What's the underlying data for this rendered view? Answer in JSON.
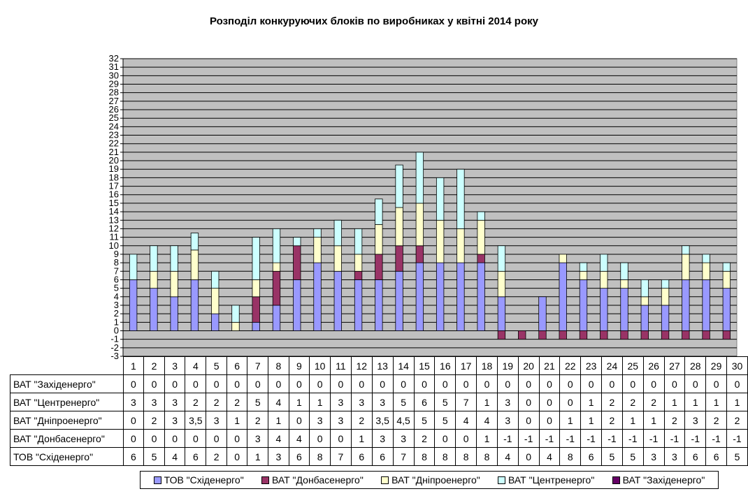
{
  "chart_data": {
    "type": "bar",
    "stacked": true,
    "title": "Розподіл конкуруючих блоків по виробниках у квітні 2014 року",
    "xlabel": "",
    "ylabel": "",
    "ylim": [
      -3,
      32
    ],
    "grid": true,
    "legend": "bottom",
    "categories": [
      "1",
      "2",
      "3",
      "4",
      "5",
      "6",
      "7",
      "8",
      "9",
      "10",
      "11",
      "12",
      "13",
      "14",
      "15",
      "16",
      "17",
      "18",
      "19",
      "20",
      "21",
      "22",
      "23",
      "24",
      "25",
      "26",
      "27",
      "28",
      "29",
      "30"
    ],
    "series": [
      {
        "name": "ТОВ \"Східенерго\"",
        "color": "#9999FF",
        "values": [
          6,
          5,
          4,
          6,
          2,
          0,
          1,
          3,
          6,
          8,
          7,
          6,
          6,
          7,
          8,
          8,
          8,
          8,
          4,
          0,
          4,
          8,
          6,
          5,
          5,
          3,
          3,
          6,
          6,
          5
        ],
        "labels": [
          "6",
          "5",
          "4",
          "6",
          "2",
          "0",
          "1",
          "3",
          "6",
          "8",
          "7",
          "6",
          "6",
          "7",
          "8",
          "8",
          "8",
          "8",
          "4",
          "0",
          "4",
          "8",
          "6",
          "5",
          "5",
          "3",
          "3",
          "6",
          "6",
          "5"
        ]
      },
      {
        "name": "ВАТ \"Донбасенерго\"",
        "color": "#993366",
        "values": [
          0,
          0,
          0,
          0,
          0,
          0,
          3,
          4,
          4,
          0,
          0,
          1,
          3,
          3,
          2,
          0,
          0,
          1,
          -1,
          -1,
          -1,
          -1,
          -1,
          -1,
          -1,
          -1,
          -1,
          -1,
          -1,
          -1
        ],
        "labels": [
          "0",
          "0",
          "0",
          "0",
          "0",
          "0",
          "3",
          "4",
          "4",
          "0",
          "0",
          "1",
          "3",
          "3",
          "2",
          "0",
          "0",
          "1",
          "-1",
          "-1",
          "-1",
          "-1",
          "-1",
          "-1",
          "-1",
          "-1",
          "-1",
          "-1",
          "-1",
          "-1"
        ]
      },
      {
        "name": "ВАТ \"Дніпроенерго\"",
        "color": "#FFFFCC",
        "values": [
          0,
          2,
          3,
          3.5,
          3,
          1,
          2,
          1,
          0,
          3,
          3,
          2,
          3.5,
          4.5,
          5,
          5,
          4,
          4,
          3,
          0,
          0,
          1,
          1,
          2,
          1,
          1,
          2,
          3,
          2,
          2
        ],
        "labels": [
          "0",
          "2",
          "3",
          "3,5",
          "3",
          "1",
          "2",
          "1",
          "0",
          "3",
          "3",
          "2",
          "3,5",
          "4,5",
          "5",
          "5",
          "4",
          "4",
          "3",
          "0",
          "0",
          "1",
          "1",
          "2",
          "1",
          "1",
          "2",
          "3",
          "2",
          "2"
        ]
      },
      {
        "name": "ВАТ \"Центренерго\"",
        "color": "#CCFFFF",
        "values": [
          3,
          3,
          3,
          2,
          2,
          2,
          5,
          4,
          1,
          1,
          3,
          3,
          3,
          5,
          6,
          5,
          7,
          1,
          3,
          0,
          0,
          0,
          1,
          2,
          2,
          2,
          1,
          1,
          1,
          1
        ],
        "labels": [
          "3",
          "3",
          "3",
          "2",
          "2",
          "2",
          "5",
          "4",
          "1",
          "1",
          "3",
          "3",
          "3",
          "5",
          "6",
          "5",
          "7",
          "1",
          "3",
          "0",
          "0",
          "0",
          "1",
          "2",
          "2",
          "2",
          "1",
          "1",
          "1",
          "1"
        ]
      },
      {
        "name": "ВАТ \"Західенерго\"",
        "color": "#660066",
        "values": [
          0,
          0,
          0,
          0,
          0,
          0,
          0,
          0,
          0,
          0,
          0,
          0,
          0,
          0,
          0,
          0,
          0,
          0,
          0,
          0,
          0,
          0,
          0,
          0,
          0,
          0,
          0,
          0,
          0,
          0
        ],
        "labels": [
          "0",
          "0",
          "0",
          "0",
          "0",
          "0",
          "0",
          "0",
          "0",
          "0",
          "0",
          "0",
          "0",
          "0",
          "0",
          "0",
          "0",
          "0",
          "0",
          "0",
          "0",
          "0",
          "0",
          "0",
          "0",
          "0",
          "0",
          "0",
          "0",
          "0"
        ]
      }
    ],
    "table_row_order": [
      4,
      3,
      2,
      1,
      0
    ],
    "y_ticks": [
      "32",
      "31",
      "30",
      "29",
      "28",
      "27",
      "26",
      "25",
      "24",
      "23",
      "22",
      "21",
      "20",
      "19",
      "18",
      "17",
      "16",
      "15",
      "14",
      "13",
      "12",
      "11",
      "10",
      "9",
      "8",
      "7",
      "6",
      "5",
      "4",
      "3",
      "2",
      "1",
      "0",
      "-1",
      "-2",
      "-3"
    ],
    "plot_background": "#C0C0C0"
  }
}
